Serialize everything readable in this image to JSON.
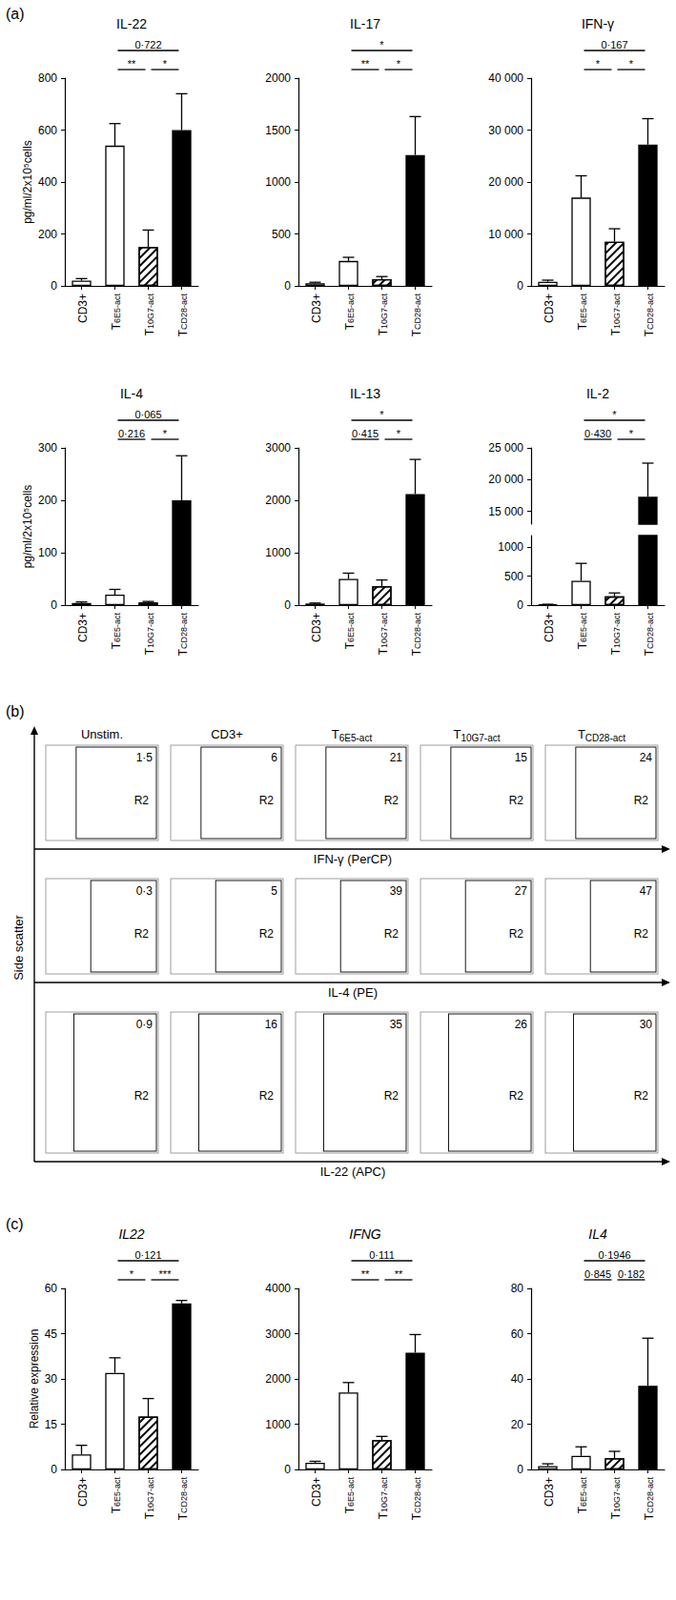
{
  "chart_data": [
    {
      "type": "bar",
      "title": "IL-22",
      "y_label": "pg/ml/2x10⁵cells",
      "categories": [
        "CD3+",
        "T6E5-act",
        "T10G7-act",
        "TCD28-act"
      ],
      "values": [
        20,
        540,
        150,
        600
      ],
      "errors": [
        8,
        85,
        65,
        140
      ],
      "colors": [
        "#ffffff",
        "#ffffff",
        "#ffffff",
        "#000000"
      ],
      "ylim": [
        0,
        800
      ],
      "yticks": [
        0,
        200,
        400,
        600,
        800
      ],
      "annotations": [
        {
          "from": "T6E5-act",
          "to": "T10G7-act",
          "label": "**"
        },
        {
          "from": "T10G7-act",
          "to": "TCD28-act",
          "label": "*"
        },
        {
          "from": "T6E5-act",
          "to": "TCD28-act",
          "label": "0·722"
        }
      ]
    },
    {
      "type": "bar",
      "title": "IL-17",
      "categories": [
        "CD3+",
        "T6E5-act",
        "T10G7-act",
        "TCD28-act"
      ],
      "values": [
        25,
        240,
        65,
        1260
      ],
      "errors": [
        10,
        35,
        25,
        370
      ],
      "colors": [
        "#ffffff",
        "#ffffff",
        "#ffffff",
        "#000000"
      ],
      "ylim": [
        0,
        2000
      ],
      "yticks": [
        0,
        500,
        1000,
        1500,
        2000
      ],
      "annotations": [
        {
          "from": "T6E5-act",
          "to": "T10G7-act",
          "label": "**"
        },
        {
          "from": "T10G7-act",
          "to": "TCD28-act",
          "label": "*"
        },
        {
          "from": "T6E5-act",
          "to": "TCD28-act",
          "label": "*"
        }
      ]
    },
    {
      "type": "bar",
      "title": "IFN-γ",
      "categories": [
        "CD3+",
        "T6E5-act",
        "T10G7-act",
        "TCD28-act"
      ],
      "values": [
        800,
        17000,
        8500,
        27200
      ],
      "errors": [
        300,
        4200,
        2500,
        5000
      ],
      "colors": [
        "#ffffff",
        "#ffffff",
        "#ffffff",
        "#000000"
      ],
      "ylim": [
        0,
        40000
      ],
      "yticks": [
        0,
        {
          "value": 10000,
          "label": "10 000"
        },
        {
          "value": 20000,
          "label": "20 000"
        },
        {
          "value": 30000,
          "label": "30 000"
        },
        {
          "value": 40000,
          "label": "40 000"
        }
      ],
      "annotations": [
        {
          "from": "T6E5-act",
          "to": "T10G7-act",
          "label": "*"
        },
        {
          "from": "T10G7-act",
          "to": "TCD28-act",
          "label": "*"
        },
        {
          "from": "T6E5-act",
          "to": "TCD28-act",
          "label": "0·167"
        }
      ]
    },
    {
      "type": "bar",
      "title": "IL-4",
      "y_label": "pg/ml/2x10⁵cells",
      "categories": [
        "CD3+",
        "T6E5-act",
        "T10G7-act",
        "TCD28-act"
      ],
      "values": [
        4,
        20,
        5,
        200
      ],
      "errors": [
        2,
        10,
        2,
        85
      ],
      "colors": [
        "#ffffff",
        "#ffffff",
        "#ffffff",
        "#000000"
      ],
      "ylim": [
        0,
        300
      ],
      "yticks": [
        0,
        100,
        200,
        300
      ],
      "annotations": [
        {
          "from": "T6E5-act",
          "to": "T10G7-act",
          "label": "0·216"
        },
        {
          "from": "T10G7-act",
          "to": "TCD28-act",
          "label": "*"
        },
        {
          "from": "T6E5-act",
          "to": "TCD28-act",
          "label": "0·065"
        }
      ]
    },
    {
      "type": "bar",
      "title": "IL-13",
      "categories": [
        "CD3+",
        "T6E5-act",
        "T10G7-act",
        "TCD28-act"
      ],
      "values": [
        30,
        500,
        360,
        2120
      ],
      "errors": [
        10,
        110,
        120,
        660
      ],
      "colors": [
        "#ffffff",
        "#ffffff",
        "#ffffff",
        "#000000"
      ],
      "ylim": [
        0,
        3000
      ],
      "yticks": [
        0,
        1000,
        2000,
        3000
      ],
      "annotations": [
        {
          "from": "T6E5-act",
          "to": "T10G7-act",
          "label": "0·415"
        },
        {
          "from": "T10G7-act",
          "to": "TCD28-act",
          "label": "*"
        },
        {
          "from": "T6E5-act",
          "to": "TCD28-act",
          "label": "*"
        }
      ]
    },
    {
      "type": "bar",
      "title": "IL-2",
      "categories": [
        "CD3+",
        "T6E5-act",
        "T10G7-act",
        "TCD28-act"
      ],
      "values": [
        10,
        420,
        150,
        17300
      ],
      "errors": [
        5,
        300,
        60,
        5300
      ],
      "colors": [
        "#ffffff",
        "#ffffff",
        "#ffffff",
        "#000000"
      ],
      "ylim": [
        0,
        25000
      ],
      "y_break": [
        1200,
        13000
      ],
      "yticks": [
        0,
        500,
        1000,
        {
          "value": 15000,
          "label": "15 000"
        },
        {
          "value": 20000,
          "label": "20 000"
        },
        {
          "value": 25000,
          "label": "25 000"
        }
      ],
      "annotations": [
        {
          "from": "T6E5-act",
          "to": "T10G7-act",
          "label": "0·430"
        },
        {
          "from": "T10G7-act",
          "to": "TCD28-act",
          "label": "*"
        },
        {
          "from": "T6E5-act",
          "to": "TCD28-act",
          "label": "*"
        }
      ]
    },
    {
      "type": "bar",
      "title": "IL22",
      "y_label": "Relative expression",
      "categories": [
        "CD3+",
        "T6E5-act",
        "T10G7-act",
        "TCD28-act"
      ],
      "values": [
        5,
        32,
        17.5,
        55
      ],
      "errors": [
        3,
        5,
        6,
        1
      ],
      "colors": [
        "#ffffff",
        "#ffffff",
        "#ffffff",
        "#000000"
      ],
      "ylim": [
        0,
        60
      ],
      "yticks": [
        0,
        15,
        30,
        45,
        60
      ],
      "annotations": [
        {
          "from": "T6E5-act",
          "to": "T10G7-act",
          "label": "*"
        },
        {
          "from": "T10G7-act",
          "to": "TCD28-act",
          "label": "***"
        },
        {
          "from": "T6E5-act",
          "to": "TCD28-act",
          "label": "0·121"
        }
      ]
    },
    {
      "type": "bar",
      "title": "IFNG",
      "categories": [
        "CD3+",
        "T6E5-act",
        "T10G7-act",
        "TCD28-act"
      ],
      "values": [
        150,
        1700,
        650,
        2580
      ],
      "errors": [
        30,
        220,
        80,
        400
      ],
      "colors": [
        "#ffffff",
        "#ffffff",
        "#ffffff",
        "#000000"
      ],
      "ylim": [
        0,
        4000
      ],
      "yticks": [
        0,
        1000,
        2000,
        3000,
        4000
      ],
      "annotations": [
        {
          "from": "T6E5-act",
          "to": "T10G7-act",
          "label": "**"
        },
        {
          "from": "T10G7-act",
          "to": "TCD28-act",
          "label": "**"
        },
        {
          "from": "T6E5-act",
          "to": "TCD28-act",
          "label": "0·111"
        }
      ]
    },
    {
      "type": "bar",
      "title": "IL4",
      "categories": [
        "CD3+",
        "T6E5-act",
        "T10G7-act",
        "TCD28-act"
      ],
      "values": [
        1.5,
        6,
        5,
        37
      ],
      "errors": [
        1,
        4,
        3,
        21
      ],
      "colors": [
        "#ffffff",
        "#ffffff",
        "#ffffff",
        "#000000"
      ],
      "ylim": [
        0,
        80
      ],
      "yticks": [
        0,
        20,
        40,
        60,
        80
      ],
      "annotations": [
        {
          "from": "T6E5-act",
          "to": "T10G7-act",
          "label": "0·845"
        },
        {
          "from": "T10G7-act",
          "to": "TCD28-act",
          "label": "0·182"
        },
        {
          "from": "T6E5-act",
          "to": "TCD28-act",
          "label": "0·1946"
        }
      ]
    }
  ],
  "panel_labels": [
    "(a)",
    "(b)",
    "(c)"
  ],
  "flow_cytometry": {
    "y_label": "Side scatter",
    "gate": "R2",
    "columns": [
      "Unstim.",
      "CD3+",
      "T6E5-act",
      "T10G7-act",
      "TCD28-act"
    ],
    "rows": [
      {
        "x_label": "IFN-γ (PerCP)",
        "percentages": [
          "1·5",
          "6",
          "21",
          "15",
          "24"
        ]
      },
      {
        "x_label": "IL-4 (PE)",
        "percentages": [
          "0·3",
          "5",
          "39",
          "27",
          "47"
        ]
      },
      {
        "x_label": "IL-22 (APC)",
        "percentages": [
          "0·9",
          "16",
          "35",
          "26",
          "30"
        ]
      }
    ]
  }
}
